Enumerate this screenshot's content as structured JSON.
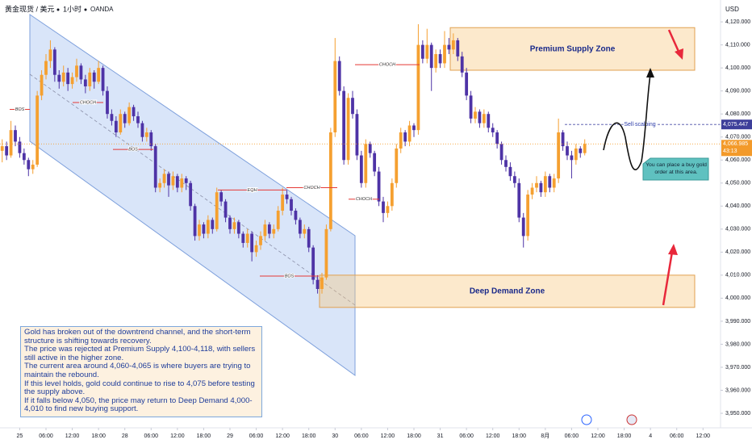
{
  "chart_data": {
    "type": "candlestick",
    "symbol": "黄金现货 / 美元",
    "interval": "1小时",
    "source": "OANDA",
    "currency": "USD",
    "up_color": "#f5a030",
    "down_color": "#4e33a6",
    "candles": [
      [
        4064,
        4069,
        4059,
        4066
      ],
      [
        4066,
        4068,
        4060,
        4062
      ],
      [
        4062,
        4077,
        4061,
        4073
      ],
      [
        4073,
        4075,
        4066,
        4068
      ],
      [
        4068,
        4070,
        4061,
        4063
      ],
      [
        4063,
        4065,
        4058,
        4060
      ],
      [
        4060,
        4061,
        4053,
        4056
      ],
      [
        4056,
        4060,
        4054,
        4058
      ],
      [
        4058,
        4090,
        4057,
        4088
      ],
      [
        4088,
        4099,
        4086,
        4097
      ],
      [
        4097,
        4106,
        4095,
        4103
      ],
      [
        4103,
        4112,
        4100,
        4108
      ],
      [
        4108,
        4109,
        4094,
        4097
      ],
      [
        4097,
        4099,
        4091,
        4094
      ],
      [
        4094,
        4101,
        4092,
        4098
      ],
      [
        4098,
        4100,
        4090,
        4093
      ],
      [
        4093,
        4098,
        4091,
        4096
      ],
      [
        4096,
        4104,
        4094,
        4101
      ],
      [
        4101,
        4102,
        4093,
        4095
      ],
      [
        4095,
        4097,
        4089,
        4092
      ],
      [
        4092,
        4100,
        4090,
        4098
      ],
      [
        4098,
        4099,
        4091,
        4094
      ],
      [
        4094,
        4103,
        4093,
        4100
      ],
      [
        4100,
        4101,
        4088,
        4090
      ],
      [
        4090,
        4092,
        4078,
        4080
      ],
      [
        4080,
        4082,
        4075,
        4077
      ],
      [
        4077,
        4079,
        4070,
        4072
      ],
      [
        4072,
        4082,
        4071,
        4080
      ],
      [
        4080,
        4081,
        4074,
        4076
      ],
      [
        4076,
        4085,
        4075,
        4083
      ],
      [
        4083,
        4084,
        4077,
        4079
      ],
      [
        4079,
        4081,
        4074,
        4076
      ],
      [
        4076,
        4077,
        4068,
        4070
      ],
      [
        4070,
        4074,
        4068,
        4072
      ],
      [
        4072,
        4073,
        4064,
        4066
      ],
      [
        4066,
        4067,
        4046,
        4048
      ],
      [
        4048,
        4052,
        4046,
        4050
      ],
      [
        4050,
        4056,
        4048,
        4054
      ],
      [
        4054,
        4055,
        4044,
        4049
      ],
      [
        4049,
        4055,
        4047,
        4053
      ],
      [
        4053,
        4054,
        4046,
        4048
      ],
      [
        4048,
        4054,
        4046,
        4052
      ],
      [
        4052,
        4053,
        4047,
        4050
      ],
      [
        4050,
        4051,
        4038,
        4040
      ],
      [
        4040,
        4041,
        4025,
        4027
      ],
      [
        4027,
        4034,
        4025,
        4032
      ],
      [
        4032,
        4033,
        4026,
        4028
      ],
      [
        4028,
        4036,
        4026,
        4034
      ],
      [
        4034,
        4035,
        4028,
        4030
      ],
      [
        4030,
        4048,
        4029,
        4046
      ],
      [
        4046,
        4047,
        4040,
        4042
      ],
      [
        4042,
        4043,
        4033,
        4035
      ],
      [
        4035,
        4036,
        4028,
        4030
      ],
      [
        4030,
        4035,
        4028,
        4033
      ],
      [
        4033,
        4034,
        4026,
        4028
      ],
      [
        4028,
        4029,
        4022,
        4024
      ],
      [
        4024,
        4030,
        4022,
        4028
      ],
      [
        4028,
        4029,
        4016,
        4020
      ],
      [
        4020,
        4025,
        4018,
        4023
      ],
      [
        4023,
        4029,
        4021,
        4027
      ],
      [
        4027,
        4034,
        4025,
        4032
      ],
      [
        4032,
        4033,
        4026,
        4028
      ],
      [
        4028,
        4032,
        4026,
        4030
      ],
      [
        4030,
        4040,
        4029,
        4038
      ],
      [
        4038,
        4048,
        4036,
        4045
      ],
      [
        4045,
        4047,
        4041,
        4043
      ],
      [
        4043,
        4044,
        4036,
        4038
      ],
      [
        4038,
        4039,
        4032,
        4034
      ],
      [
        4034,
        4035,
        4026,
        4028
      ],
      [
        4028,
        4032,
        4026,
        4030
      ],
      [
        4030,
        4031,
        4020,
        4022
      ],
      [
        4022,
        4023,
        4006,
        4008
      ],
      [
        4008,
        4010,
        4002,
        4004
      ],
      [
        4004,
        4011,
        4002,
        4009
      ],
      [
        4009,
        4032,
        4008,
        4030
      ],
      [
        4030,
        4074,
        4029,
        4072
      ],
      [
        4072,
        4113,
        4070,
        4103
      ],
      [
        4103,
        4105,
        4088,
        4090
      ],
      [
        4090,
        4092,
        4058,
        4060
      ],
      [
        4060,
        4089,
        4058,
        4087
      ],
      [
        4087,
        4090,
        4078,
        4080
      ],
      [
        4080,
        4082,
        4060,
        4062
      ],
      [
        4062,
        4064,
        4048,
        4050
      ],
      [
        4050,
        4069,
        4048,
        4067
      ],
      [
        4067,
        4068,
        4061,
        4063
      ],
      [
        4063,
        4064,
        4053,
        4055
      ],
      [
        4055,
        4057,
        4040,
        4042
      ],
      [
        4042,
        4044,
        4033,
        4037
      ],
      [
        4037,
        4042,
        4035,
        4040
      ],
      [
        4040,
        4052,
        4038,
        4050
      ],
      [
        4050,
        4067,
        4048,
        4065
      ],
      [
        4065,
        4074,
        4063,
        4072
      ],
      [
        4072,
        4073,
        4066,
        4068
      ],
      [
        4068,
        4077,
        4066,
        4075
      ],
      [
        4075,
        4076,
        4070,
        4073
      ],
      [
        4073,
        4119,
        4071,
        4110
      ],
      [
        4110,
        4112,
        4102,
        4104
      ],
      [
        4104,
        4117,
        4102,
        4110
      ],
      [
        4110,
        4111,
        4090,
        4100
      ],
      [
        4100,
        4108,
        4098,
        4106
      ],
      [
        4106,
        4108,
        4100,
        4102
      ],
      [
        4102,
        4116,
        4100,
        4110
      ],
      [
        4110,
        4113,
        4106,
        4108
      ],
      [
        4108,
        4115,
        4106,
        4112
      ],
      [
        4112,
        4113,
        4103,
        4105
      ],
      [
        4105,
        4107,
        4096,
        4098
      ],
      [
        4098,
        4100,
        4086,
        4088
      ],
      [
        4088,
        4090,
        4076,
        4078
      ],
      [
        4078,
        4083,
        4076,
        4081
      ],
      [
        4081,
        4082,
        4074,
        4076
      ],
      [
        4076,
        4082,
        4074,
        4080
      ],
      [
        4080,
        4081,
        4072,
        4074
      ],
      [
        4074,
        4076,
        4070,
        4072
      ],
      [
        4072,
        4073,
        4065,
        4067
      ],
      [
        4067,
        4068,
        4058,
        4060
      ],
      [
        4060,
        4062,
        4055,
        4057
      ],
      [
        4057,
        4059,
        4051,
        4053
      ],
      [
        4053,
        4055,
        4048,
        4050
      ],
      [
        4050,
        4052,
        4033,
        4035
      ],
      [
        4035,
        4037,
        4022,
        4027
      ],
      [
        4027,
        4047,
        4025,
        4045
      ],
      [
        4045,
        4050,
        4043,
        4048
      ],
      [
        4048,
        4053,
        4046,
        4050
      ],
      [
        4050,
        4051,
        4044,
        4046
      ],
      [
        4046,
        4055,
        4044,
        4053
      ],
      [
        4053,
        4054,
        4046,
        4048
      ],
      [
        4048,
        4054,
        4046,
        4052
      ],
      [
        4052,
        4078,
        4050,
        4072
      ],
      [
        4072,
        4073,
        4064,
        4066
      ],
      [
        4066,
        4068,
        4060,
        4062
      ],
      [
        4062,
        4064,
        4052,
        4060
      ],
      [
        4060,
        4067,
        4058,
        4065
      ],
      [
        4065,
        4066,
        4061,
        4063
      ],
      [
        4063,
        4069,
        4062,
        4066.985
      ]
    ],
    "xlim": [
      -0.5,
      164
    ],
    "xticks": [
      {
        "value": 4,
        "label": "25"
      },
      {
        "value": 10,
        "label": "06:00"
      },
      {
        "value": 16,
        "label": "12:00"
      },
      {
        "value": 22,
        "label": "18:00"
      },
      {
        "value": 28,
        "label": "28"
      },
      {
        "value": 34,
        "label": "06:00"
      },
      {
        "value": 40,
        "label": "12:00"
      },
      {
        "value": 46,
        "label": "18:00"
      },
      {
        "value": 52,
        "label": "29"
      },
      {
        "value": 58,
        "label": "06:00"
      },
      {
        "value": 64,
        "label": "12:00"
      },
      {
        "value": 70,
        "label": "18:00"
      },
      {
        "value": 76,
        "label": "30"
      },
      {
        "value": 82,
        "label": "06:00"
      },
      {
        "value": 88,
        "label": "12:00"
      },
      {
        "value": 94,
        "label": "18:00"
      },
      {
        "value": 100,
        "label": "31"
      },
      {
        "value": 106,
        "label": "06:00"
      },
      {
        "value": 112,
        "label": "12:00"
      },
      {
        "value": 118,
        "label": "18:00"
      },
      {
        "value": 124,
        "label": "8月"
      },
      {
        "value": 130,
        "label": "06:00"
      },
      {
        "value": 136,
        "label": "12:00"
      },
      {
        "value": 142,
        "label": "18:00"
      },
      {
        "value": 148,
        "label": "4"
      },
      {
        "value": 154,
        "label": "06:00"
      },
      {
        "value": 160,
        "label": "12:00"
      }
    ],
    "ylim": [
      3943.7,
      4129.5
    ],
    "yticks": [
      {
        "value": 4120,
        "label": "4,120.000"
      },
      {
        "value": 4110,
        "label": "4,110.000"
      },
      {
        "value": 4100,
        "label": "4,100.000"
      },
      {
        "value": 4090,
        "label": "4,090.000"
      },
      {
        "value": 4080,
        "label": "4,080.000"
      },
      {
        "value": 4070,
        "label": "4,070.000"
      },
      {
        "value": 4060,
        "label": "4,060.000"
      },
      {
        "value": 4050,
        "label": "4,050.000"
      },
      {
        "value": 4040,
        "label": "4,040.000"
      },
      {
        "value": 4030,
        "label": "4,030.000"
      },
      {
        "value": 4020,
        "label": "4,020.000"
      },
      {
        "value": 4010,
        "label": "4,010.000"
      },
      {
        "value": 4000,
        "label": "4,000.000"
      },
      {
        "value": 3990,
        "label": "3,990.000"
      },
      {
        "value": 3980,
        "label": "3,980.000"
      },
      {
        "value": 3970,
        "label": "3,970.000"
      },
      {
        "value": 3960,
        "label": "3,960.000"
      },
      {
        "value": 3950,
        "label": "3,950.000"
      }
    ],
    "last_price": {
      "value": 4066.985,
      "label": "4,066.985"
    },
    "countdown": "43:13",
    "level": {
      "value": 4075.447,
      "label": "4,075.447",
      "name": "Sell scalping"
    },
    "zones": [
      {
        "label": "Premium Supply Zone",
        "range": [
          4099,
          4117.5
        ]
      },
      {
        "label": "Deep Demand Zone",
        "range": [
          3996,
          4010
        ]
      }
    ],
    "structure": [
      {
        "label": "BOS",
        "value": 4082
      },
      {
        "label": "CHOCH",
        "value": 4085
      },
      {
        "label": "BOS",
        "value": 4064.6
      },
      {
        "label": "EQH",
        "value": 4047
      },
      {
        "label": "CHOCH",
        "value": 4048
      },
      {
        "label": "BOS",
        "value": 4009.6
      },
      {
        "label": "CHOCH",
        "value": 4101.4
      },
      {
        "label": "CHOCH",
        "value": 4043
      }
    ],
    "callout": [
      "You can place a buy gold",
      "order at this area."
    ],
    "note": [
      "Gold has broken out of the downtrend channel, and the short-term structure is shifting towards recovery.",
      "The price was rejected at Premium Supply 4,100-4,118, with sellers still active in the higher zone.",
      "The current area around 4,060-4,065 is where buyers are trying to maintain the rebound.",
      "If this level holds, gold could continue to rise to 4,075 before testing the supply above.",
      "If it falls below 4,050, the price may return to Deep Demand 4,000-4,010 to find new buying support."
    ]
  }
}
